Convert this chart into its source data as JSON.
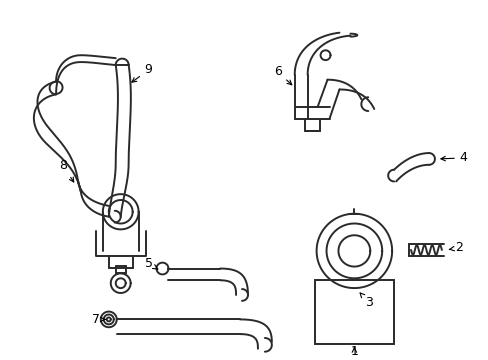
{
  "background_color": "#ffffff",
  "line_color": "#2a2a2a",
  "label_color": "#000000",
  "line_width": 1.4,
  "fig_width": 4.89,
  "fig_height": 3.6,
  "dpi": 100
}
